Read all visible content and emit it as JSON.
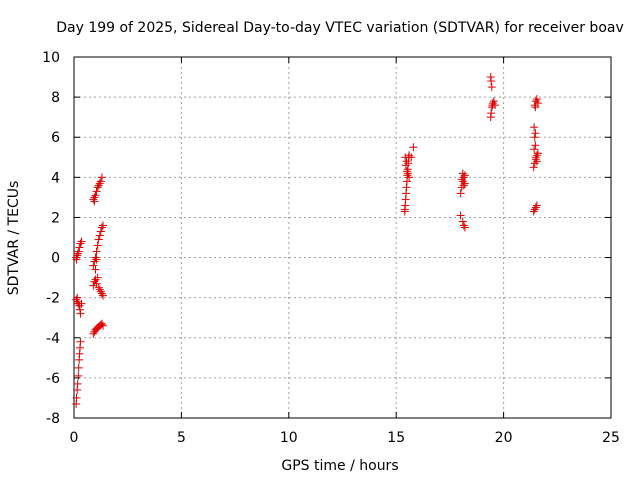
{
  "chart_data": {
    "type": "scatter",
    "title": "Day 199 of 2025, Sidereal Day-to-day VTEC variation (SDTVAR) for receiver boav",
    "xlabel": "GPS time / hours",
    "ylabel": "SDTVAR / TECUs",
    "xlim": [
      0,
      25
    ],
    "ylim": [
      -8,
      10
    ],
    "xticks": [
      0,
      5,
      10,
      15,
      20,
      25
    ],
    "yticks": [
      -8,
      -6,
      -4,
      -2,
      0,
      2,
      4,
      6,
      8,
      10
    ],
    "xtick_labels": [
      "0",
      "5",
      "10",
      "15",
      "20",
      "25"
    ],
    "ytick_labels": [
      "-8",
      "-6",
      "-4",
      "-2",
      "0",
      "2",
      "4",
      "6",
      "8",
      "10"
    ],
    "grid": true,
    "marker": "+",
    "color": "#e00000",
    "series": [
      {
        "name": "SDTVAR",
        "points": [
          [
            0.1,
            -7.3
          ],
          [
            0.12,
            -7.0
          ],
          [
            0.15,
            -6.6
          ],
          [
            0.17,
            -6.3
          ],
          [
            0.2,
            -5.9
          ],
          [
            0.22,
            -5.5
          ],
          [
            0.24,
            -5.1
          ],
          [
            0.26,
            -4.8
          ],
          [
            0.28,
            -4.5
          ],
          [
            0.3,
            -4.2
          ],
          [
            0.1,
            -2.1
          ],
          [
            0.15,
            -2.2
          ],
          [
            0.2,
            -2.3
          ],
          [
            0.25,
            -2.4
          ],
          [
            0.28,
            -2.6
          ],
          [
            0.3,
            -2.8
          ],
          [
            0.35,
            -2.3
          ],
          [
            0.15,
            -2.0
          ],
          [
            0.1,
            0.0
          ],
          [
            0.15,
            0.1
          ],
          [
            0.18,
            0.2
          ],
          [
            0.22,
            0.3
          ],
          [
            0.25,
            0.5
          ],
          [
            0.3,
            0.7
          ],
          [
            0.35,
            0.8
          ],
          [
            0.12,
            -0.1
          ],
          [
            0.9,
            2.9
          ],
          [
            0.95,
            3.0
          ],
          [
            1.0,
            3.1
          ],
          [
            1.05,
            3.3
          ],
          [
            1.1,
            3.5
          ],
          [
            1.15,
            3.6
          ],
          [
            1.2,
            3.7
          ],
          [
            1.25,
            3.8
          ],
          [
            1.3,
            4.0
          ],
          [
            0.95,
            2.8
          ],
          [
            0.9,
            -0.4
          ],
          [
            0.95,
            -0.2
          ],
          [
            1.0,
            0.0
          ],
          [
            1.05,
            0.3
          ],
          [
            1.1,
            0.6
          ],
          [
            1.15,
            0.9
          ],
          [
            1.2,
            1.1
          ],
          [
            1.25,
            1.3
          ],
          [
            1.3,
            1.5
          ],
          [
            1.35,
            1.6
          ],
          [
            1.0,
            -0.6
          ],
          [
            1.05,
            -0.1
          ],
          [
            0.9,
            -1.4
          ],
          [
            0.95,
            -1.2
          ],
          [
            1.0,
            -1.1
          ],
          [
            1.05,
            -1.3
          ],
          [
            1.1,
            -1.0
          ],
          [
            1.15,
            -1.5
          ],
          [
            1.2,
            -1.6
          ],
          [
            1.25,
            -1.7
          ],
          [
            1.3,
            -1.8
          ],
          [
            1.35,
            -1.9
          ],
          [
            0.9,
            -3.8
          ],
          [
            0.95,
            -3.7
          ],
          [
            1.0,
            -3.6
          ],
          [
            1.05,
            -3.55
          ],
          [
            1.1,
            -3.5
          ],
          [
            1.15,
            -3.45
          ],
          [
            1.2,
            -3.4
          ],
          [
            1.25,
            -3.35
          ],
          [
            1.3,
            -3.3
          ],
          [
            1.35,
            -3.4
          ],
          [
            15.4,
            2.4
          ],
          [
            15.42,
            2.6
          ],
          [
            15.44,
            2.9
          ],
          [
            15.46,
            3.2
          ],
          [
            15.48,
            3.5
          ],
          [
            15.5,
            3.8
          ],
          [
            15.52,
            4.1
          ],
          [
            15.54,
            4.4
          ],
          [
            15.56,
            4.7
          ],
          [
            15.58,
            5.0
          ],
          [
            15.6,
            5.1
          ],
          [
            15.45,
            4.6
          ],
          [
            15.5,
            4.3
          ],
          [
            15.55,
            4.2
          ],
          [
            15.6,
            4.0
          ],
          [
            15.7,
            5.0
          ],
          [
            15.8,
            5.5
          ],
          [
            15.42,
            5.0
          ],
          [
            15.48,
            4.8
          ],
          [
            15.4,
            2.3
          ],
          [
            18.0,
            2.1
          ],
          [
            18.1,
            1.8
          ],
          [
            18.15,
            1.6
          ],
          [
            18.2,
            1.5
          ],
          [
            18.0,
            3.2
          ],
          [
            18.05,
            3.5
          ],
          [
            18.1,
            3.8
          ],
          [
            18.15,
            4.0
          ],
          [
            18.2,
            4.1
          ],
          [
            18.1,
            4.2
          ],
          [
            18.05,
            3.9
          ],
          [
            18.2,
            3.7
          ],
          [
            18.15,
            3.6
          ],
          [
            19.4,
            7.0
          ],
          [
            19.42,
            7.2
          ],
          [
            19.45,
            7.5
          ],
          [
            19.48,
            7.6
          ],
          [
            19.5,
            7.7
          ],
          [
            19.55,
            7.8
          ],
          [
            19.6,
            7.6
          ],
          [
            19.45,
            8.5
          ],
          [
            19.42,
            8.8
          ],
          [
            19.4,
            9.0
          ],
          [
            21.4,
            2.3
          ],
          [
            21.45,
            2.4
          ],
          [
            21.5,
            2.5
          ],
          [
            21.55,
            2.6
          ],
          [
            21.4,
            4.5
          ],
          [
            21.45,
            4.7
          ],
          [
            21.5,
            4.9
          ],
          [
            21.55,
            5.1
          ],
          [
            21.6,
            5.2
          ],
          [
            21.42,
            5.4
          ],
          [
            21.48,
            5.6
          ],
          [
            21.5,
            5.0
          ],
          [
            21.55,
            4.8
          ],
          [
            21.45,
            6.0
          ],
          [
            21.48,
            6.2
          ],
          [
            21.42,
            6.5
          ],
          [
            21.45,
            7.6
          ],
          [
            21.5,
            7.8
          ],
          [
            21.55,
            7.9
          ],
          [
            21.6,
            7.7
          ],
          [
            21.48,
            7.5
          ]
        ]
      }
    ]
  }
}
